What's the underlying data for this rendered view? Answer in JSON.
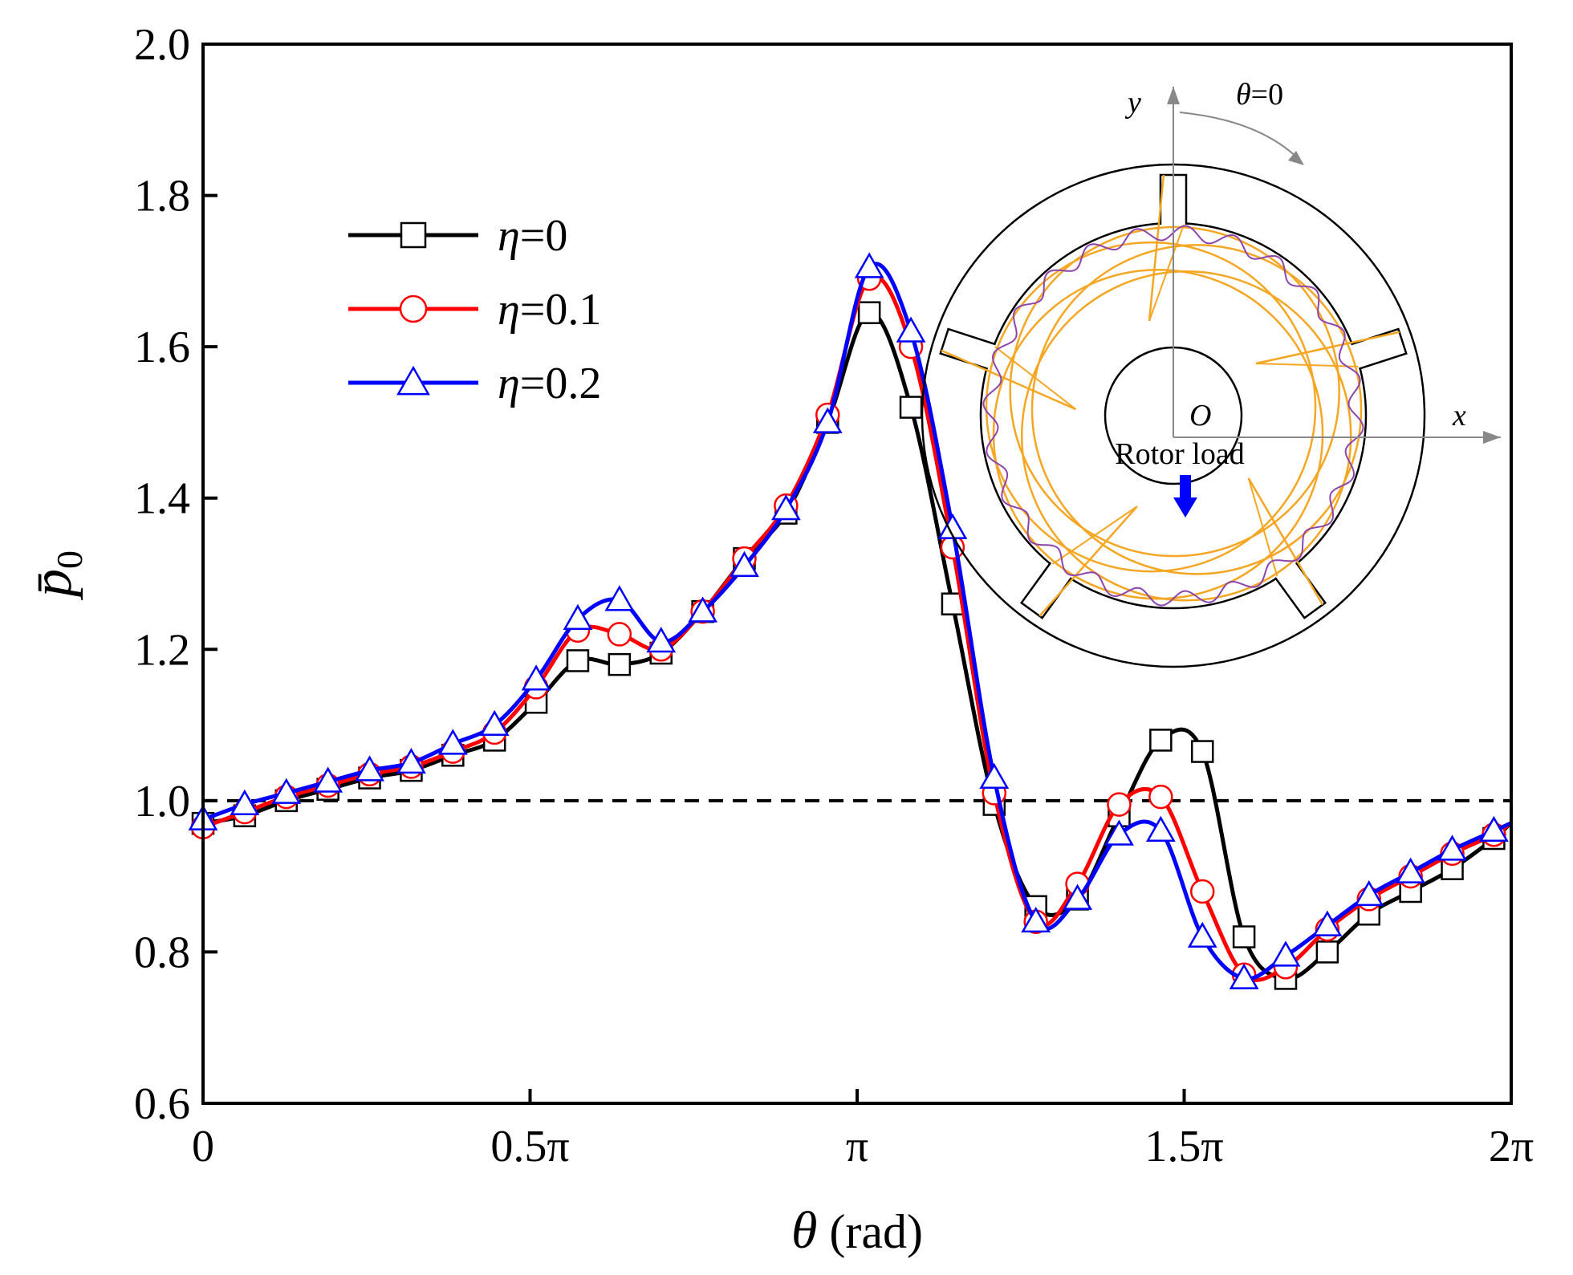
{
  "chart_data": {
    "type": "line",
    "title": "",
    "xlabel_symbol": "θ",
    "xlabel_unit": " (rad)",
    "ylabel": "p̄",
    "ylabel_subscript": "0",
    "xlim": [
      0,
      6.2832
    ],
    "ylim": [
      0.6,
      2.0
    ],
    "xticks": [
      {
        "value": 0,
        "label": "0"
      },
      {
        "value": 1.5708,
        "label": "0.5π"
      },
      {
        "value": 3.1416,
        "label": "π"
      },
      {
        "value": 4.7124,
        "label": "1.5π"
      },
      {
        "value": 6.2832,
        "label": "2π"
      }
    ],
    "yticks": [
      {
        "value": 0.6,
        "label": "0.6"
      },
      {
        "value": 0.8,
        "label": "0.8"
      },
      {
        "value": 1.0,
        "label": "1.0"
      },
      {
        "value": 1.2,
        "label": "1.2"
      },
      {
        "value": 1.4,
        "label": "1.4"
      },
      {
        "value": 1.6,
        "label": "1.6"
      },
      {
        "value": 1.8,
        "label": "1.8"
      },
      {
        "value": 2.0,
        "label": "2.0"
      }
    ],
    "reference_line": {
      "y": 1.0,
      "style": "dashed",
      "color": "#000000"
    },
    "legend_position": "upper-left",
    "series": [
      {
        "name": "η=0",
        "name_symbol": "η",
        "name_value": "=0",
        "color": "#000000",
        "marker": "square",
        "x": [
          0.0,
          0.2,
          0.4,
          0.6,
          0.8,
          1.0,
          1.2,
          1.4,
          1.6,
          1.8,
          2.0,
          2.2,
          2.4,
          2.6,
          2.8,
          3.0,
          3.2,
          3.4,
          3.6,
          3.8,
          4.0,
          4.2,
          4.4,
          4.6,
          4.8,
          5.0,
          5.2,
          5.4,
          5.6,
          5.8,
          6.0,
          6.2,
          6.28
        ],
        "y": [
          0.97,
          0.98,
          1.0,
          1.015,
          1.03,
          1.04,
          1.06,
          1.08,
          1.13,
          1.185,
          1.18,
          1.195,
          1.25,
          1.32,
          1.38,
          1.5,
          1.645,
          1.52,
          1.26,
          0.995,
          0.86,
          0.87,
          0.98,
          1.08,
          1.065,
          0.82,
          0.765,
          0.8,
          0.85,
          0.88,
          0.91,
          0.95,
          0.97
        ]
      },
      {
        "name": "η=0.1",
        "name_symbol": "η",
        "name_value": "=0.1",
        "color": "#ff0000",
        "marker": "circle",
        "x": [
          0.0,
          0.2,
          0.4,
          0.6,
          0.8,
          1.0,
          1.2,
          1.4,
          1.6,
          1.8,
          2.0,
          2.2,
          2.4,
          2.6,
          2.8,
          3.0,
          3.2,
          3.4,
          3.6,
          3.8,
          4.0,
          4.2,
          4.4,
          4.6,
          4.8,
          5.0,
          5.2,
          5.4,
          5.6,
          5.8,
          6.0,
          6.2,
          6.28
        ],
        "y": [
          0.965,
          0.985,
          1.005,
          1.02,
          1.035,
          1.045,
          1.065,
          1.09,
          1.15,
          1.225,
          1.22,
          1.2,
          1.25,
          1.32,
          1.39,
          1.51,
          1.69,
          1.6,
          1.335,
          1.01,
          0.84,
          0.89,
          0.995,
          1.005,
          0.88,
          0.77,
          0.78,
          0.83,
          0.87,
          0.9,
          0.93,
          0.955,
          0.97
        ]
      },
      {
        "name": "η=0.2",
        "name_symbol": "η",
        "name_value": "=0.2",
        "color": "#0000ff",
        "marker": "triangle",
        "x": [
          0.0,
          0.2,
          0.4,
          0.6,
          0.8,
          1.0,
          1.2,
          1.4,
          1.6,
          1.8,
          2.0,
          2.2,
          2.4,
          2.6,
          2.8,
          3.0,
          3.2,
          3.4,
          3.6,
          3.8,
          4.0,
          4.2,
          4.4,
          4.6,
          4.8,
          5.0,
          5.2,
          5.4,
          5.6,
          5.8,
          6.0,
          6.2,
          6.28
        ],
        "y": [
          0.975,
          0.995,
          1.01,
          1.025,
          1.04,
          1.05,
          1.075,
          1.1,
          1.16,
          1.24,
          1.265,
          1.21,
          1.25,
          1.31,
          1.385,
          1.5,
          1.705,
          1.62,
          1.36,
          1.03,
          0.84,
          0.87,
          0.955,
          0.96,
          0.82,
          0.765,
          0.795,
          0.835,
          0.875,
          0.905,
          0.935,
          0.96,
          0.97
        ]
      }
    ],
    "inset": {
      "label_y": "y",
      "label_x": "x",
      "label_origin": "O",
      "label_theta": "θ",
      "label_theta_value": "=0",
      "label_load": "Rotor load",
      "arrow_color": "#0000ff",
      "pad_color": "#f5a623",
      "film_color": "#8e44ad"
    }
  }
}
